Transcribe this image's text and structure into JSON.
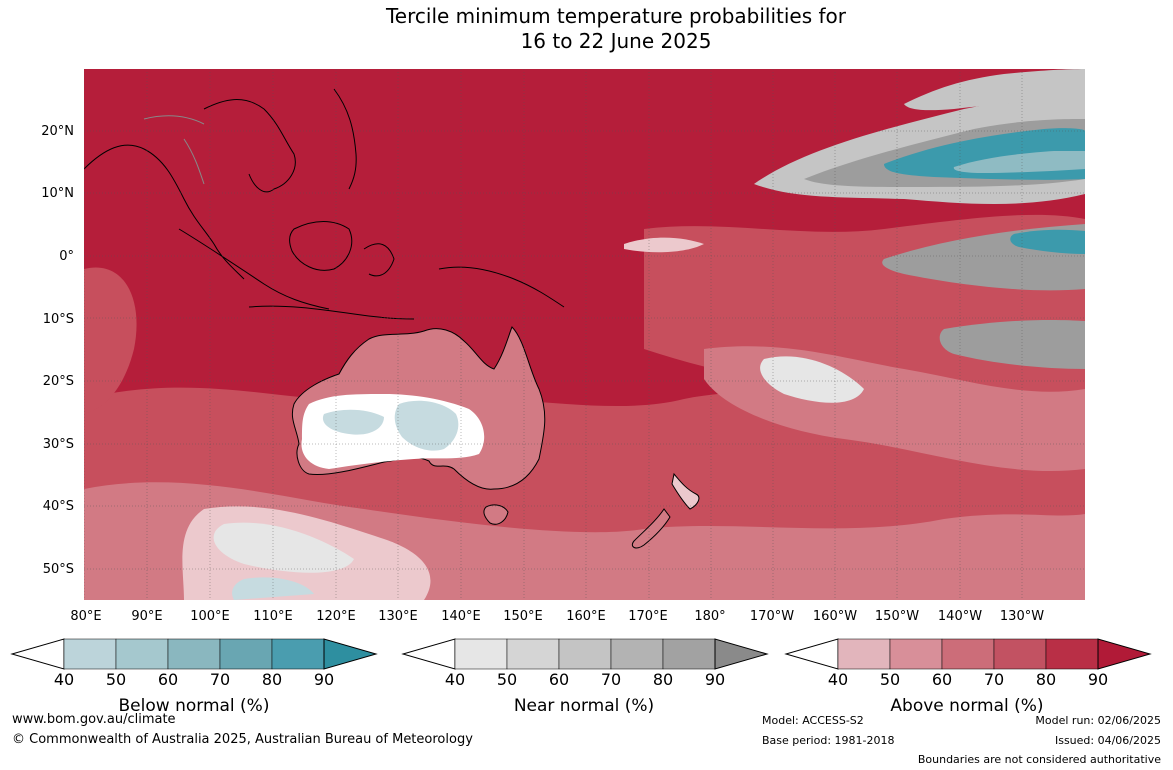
{
  "title": {
    "line1": "Tercile minimum temperature probabilities for",
    "line2": "16 to 22 June 2025"
  },
  "map": {
    "lat_labels": [
      "20°N",
      "10°N",
      "0°",
      "10°S",
      "20°S",
      "30°S",
      "40°S",
      "50°S"
    ],
    "lon_labels": [
      "80°E",
      "90°E",
      "100°E",
      "110°E",
      "120°E",
      "130°E",
      "140°E",
      "150°E",
      "160°E",
      "170°E",
      "180°",
      "170°W",
      "160°W",
      "150°W",
      "140°W",
      "130°W"
    ],
    "colors": {
      "above_90": "#b51e3a",
      "above_80": "#bc3049",
      "above_70": "#c74f5d",
      "above_60": "#d27a84",
      "above_50": "#dfa3ab",
      "above_40": "#ecc9cd",
      "near_40": "#e6e6e6",
      "near_60": "#c5c5c5",
      "near_80": "#9d9d9d",
      "below_40": "#c6dbe0",
      "below_60": "#8fbbc3",
      "below_80": "#3c9aac",
      "land_outline": "#000000",
      "border_outline": "#888888"
    }
  },
  "legends": [
    {
      "title": "Below normal (%)",
      "ticks": [
        "40",
        "50",
        "60",
        "70",
        "80",
        "90"
      ],
      "colors": [
        "#ffffff",
        "#bcd4da",
        "#a5c8ce",
        "#8ab7bf",
        "#69a6b2",
        "#4a9daf",
        "#2e8fa0"
      ]
    },
    {
      "title": "Near normal (%)",
      "ticks": [
        "40",
        "50",
        "60",
        "70",
        "80",
        "90"
      ],
      "colors": [
        "#ffffff",
        "#e6e6e6",
        "#d5d5d5",
        "#c4c4c4",
        "#b3b3b3",
        "#a2a2a2",
        "#8a8a8a"
      ]
    },
    {
      "title": "Above normal (%)",
      "ticks": [
        "40",
        "50",
        "60",
        "70",
        "80",
        "90"
      ],
      "colors": [
        "#ffffff",
        "#e2b5bc",
        "#d88f99",
        "#cc6d79",
        "#c25262",
        "#b92f46",
        "#b11a37"
      ]
    }
  ],
  "footer": {
    "website": "www.bom.gov.au/climate",
    "copyright": "© Commonwealth of Australia 2025, Australian Bureau of Meteorology",
    "model": "Model: ACCESS-S2",
    "base_period": "Base period: 1981-2018",
    "model_run": "Model run: 02/06/2025",
    "issued": "Issued: 04/06/2025",
    "disclaimer": "Boundaries are not considered authoritative"
  }
}
